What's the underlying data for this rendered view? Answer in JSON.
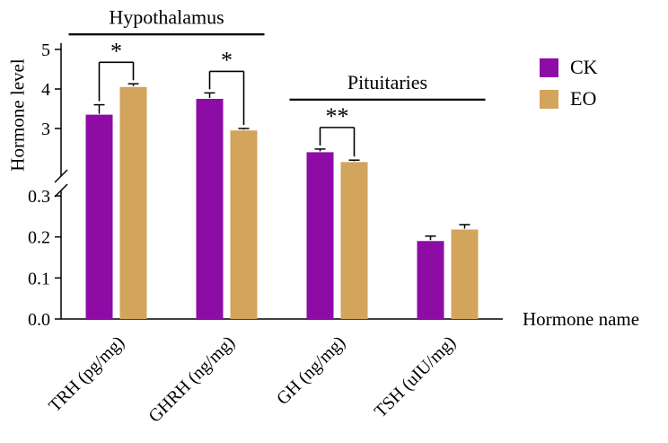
{
  "figure": {
    "ylabel": "Hormone level",
    "xlabel": "Hormone name"
  },
  "legend": {
    "items": [
      {
        "label": "CK",
        "color": "#8e0ca6"
      },
      {
        "label": "EO",
        "color": "#d2a45c"
      }
    ]
  },
  "chart_data": {
    "type": "bar",
    "title": "",
    "ylabel": "Hormone level",
    "xlabel": "Hormone name",
    "categories": [
      "TRH (pg/mg)",
      "GHRH (ng/mg)",
      "GH (ng/mg)",
      "TSH (uIU/mg)"
    ],
    "series": [
      {
        "name": "CK",
        "color": "#8e0ca6",
        "values": [
          3.35,
          3.75,
          2.4,
          0.19
        ],
        "errors": [
          0.25,
          0.15,
          0.08,
          0.012
        ]
      },
      {
        "name": "EO",
        "color": "#d2a45c",
        "values": [
          4.05,
          2.95,
          2.15,
          0.218
        ],
        "errors": [
          0.08,
          0.05,
          0.05,
          0.012
        ]
      }
    ],
    "axis": {
      "broken": true,
      "upper_range": [
        2.0,
        5
      ],
      "lower_range": [
        0.0,
        0.3
      ],
      "upper_ticks": [
        {
          "value": 3,
          "label": "3"
        },
        {
          "value": 4,
          "label": "4"
        },
        {
          "value": 5,
          "label": "5"
        }
      ],
      "lower_ticks": [
        {
          "value": 0.0,
          "label": "0.0"
        },
        {
          "value": 0.1,
          "label": "0.1"
        },
        {
          "value": 0.2,
          "label": "0.2"
        },
        {
          "value": 0.3,
          "label": "0.3"
        }
      ]
    },
    "group_annotations": [
      {
        "label": "Hypothalamus",
        "from_category": 0,
        "to_category": 1
      },
      {
        "label": "Pituitaries",
        "from_category": 2,
        "to_category": 3
      }
    ],
    "significance": [
      {
        "category": 0,
        "label": "*"
      },
      {
        "category": 1,
        "label": "*"
      },
      {
        "category": 2,
        "label": "**"
      }
    ],
    "legend_position": "right",
    "grid": false
  }
}
